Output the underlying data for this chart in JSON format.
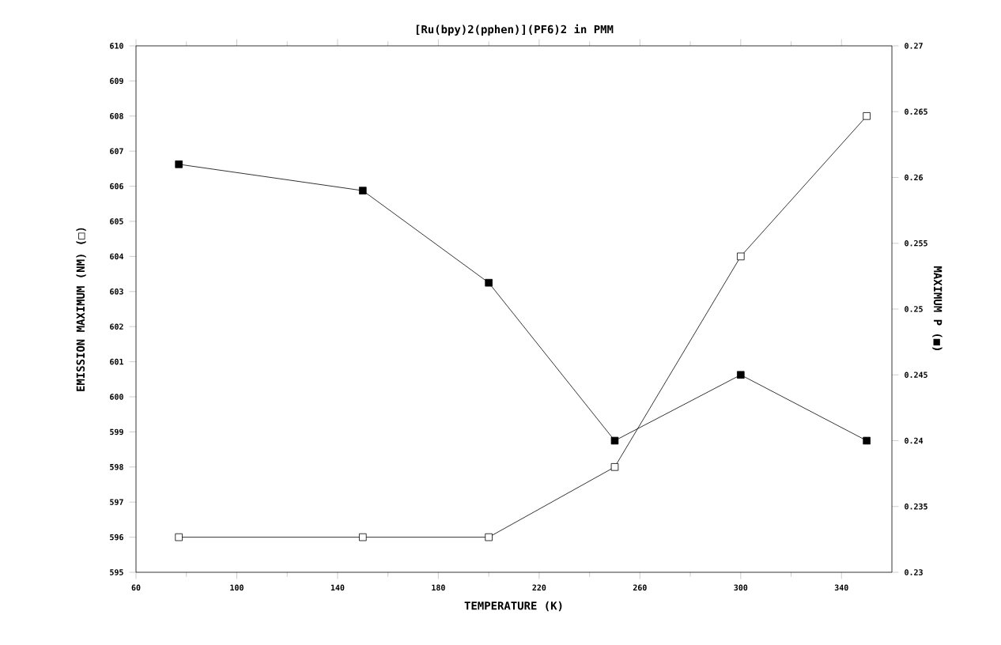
{
  "chart_data": {
    "type": "line",
    "title": "[Ru(bpy)2(pphen)](PF6)2 in PMM",
    "xlabel": "TEMPERATURE (K)",
    "ylabel": "EMISSION MAXIMUM (NM) (□)",
    "y2label": "MAXIMUM P (■)",
    "x": [
      77,
      150,
      200,
      250,
      300,
      350
    ],
    "series": [
      {
        "color": "#000000",
        "values": [
          596,
          596,
          596,
          598,
          604,
          608
        ]
      },
      {
        "color": "#000000",
        "axis": "y2",
        "values": [
          0.261,
          0.259,
          0.252,
          0.24,
          0.245,
          0.24
        ]
      }
    ],
    "xlim": [
      60,
      360
    ],
    "xticks": [
      60,
      100,
      140,
      180,
      220,
      260,
      300,
      340
    ],
    "ylim": [
      595,
      610
    ],
    "yticks": [
      595,
      596,
      597,
      598,
      599,
      600,
      601,
      602,
      603,
      604,
      605,
      606,
      607,
      608,
      609,
      610
    ],
    "y2lim": [
      0.23,
      0.27
    ],
    "y2ticks": [
      0.23,
      0.235,
      0.24,
      0.245,
      0.25,
      0.255,
      0.26,
      0.265,
      0.27
    ],
    "marker": "square",
    "line_style": "solid"
  }
}
